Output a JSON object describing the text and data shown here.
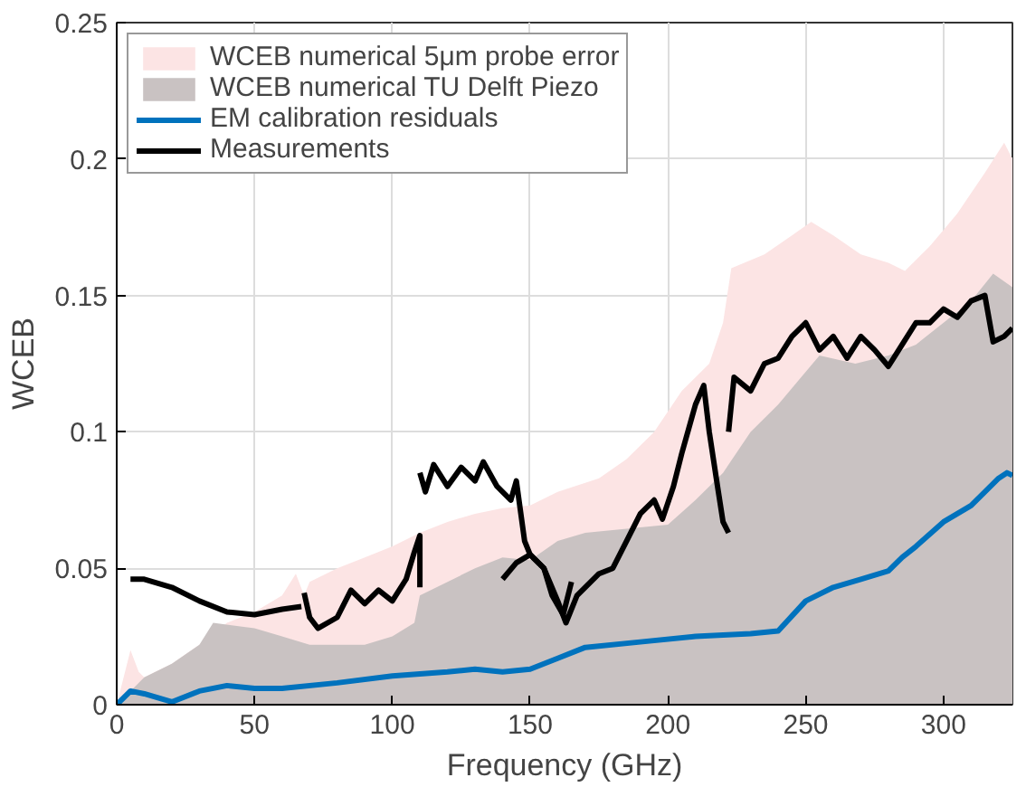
{
  "chart_data": {
    "type": "line",
    "xlabel": "Frequency (GHz)",
    "ylabel": "WCEB",
    "xlim": [
      0,
      325
    ],
    "ylim": [
      0,
      0.25
    ],
    "xticks": [
      0,
      50,
      100,
      150,
      200,
      250,
      300
    ],
    "yticks": [
      0,
      0.05,
      0.1,
      0.15,
      0.2,
      0.25
    ],
    "grid": true,
    "legend": "top left",
    "series": [
      {
        "name": "WCEB numerical 5μm probe error",
        "type": "area",
        "color": "#fce4e4",
        "x": [
          0,
          5,
          8,
          10,
          20,
          30,
          40,
          50,
          60,
          65,
          68,
          70,
          80,
          90,
          100,
          110,
          120,
          130,
          140,
          150,
          160,
          175,
          185,
          195,
          205,
          215,
          220,
          223,
          235,
          245,
          252,
          260,
          270,
          280,
          286,
          295,
          305,
          315,
          322,
          325
        ],
        "values": [
          0,
          0.02,
          0.012,
          0.01,
          0.015,
          0.022,
          0.03,
          0.034,
          0.04,
          0.048,
          0.04,
          0.045,
          0.05,
          0.054,
          0.058,
          0.063,
          0.067,
          0.07,
          0.072,
          0.073,
          0.078,
          0.083,
          0.09,
          0.1,
          0.115,
          0.125,
          0.14,
          0.16,
          0.165,
          0.172,
          0.177,
          0.172,
          0.165,
          0.162,
          0.159,
          0.168,
          0.18,
          0.195,
          0.206,
          0.2
        ]
      },
      {
        "name": "WCEB numerical TU Delft Piezo",
        "type": "area",
        "color": "#c9c2c2",
        "x": [
          0,
          5,
          10,
          20,
          30,
          35,
          50,
          60,
          70,
          90,
          100,
          108,
          110,
          130,
          140,
          150,
          160,
          170,
          190,
          200,
          210,
          220,
          230,
          240,
          250,
          255,
          268,
          280,
          290,
          300,
          310,
          318,
          325
        ],
        "values": [
          0,
          0.005,
          0.01,
          0.015,
          0.022,
          0.03,
          0.028,
          0.025,
          0.022,
          0.022,
          0.025,
          0.03,
          0.04,
          0.05,
          0.054,
          0.053,
          0.06,
          0.063,
          0.065,
          0.066,
          0.075,
          0.085,
          0.1,
          0.11,
          0.122,
          0.128,
          0.125,
          0.128,
          0.132,
          0.14,
          0.148,
          0.158,
          0.153
        ]
      },
      {
        "name": "EM calibration residuals",
        "color": "#0072bd",
        "x": [
          0,
          5,
          10,
          20,
          30,
          40,
          50,
          60,
          80,
          100,
          120,
          130,
          140,
          150,
          160,
          170,
          190,
          210,
          230,
          240,
          250,
          260,
          270,
          280,
          285,
          290,
          300,
          310,
          320,
          323,
          325
        ],
        "values": [
          0,
          0.005,
          0.004,
          0.001,
          0.005,
          0.007,
          0.006,
          0.006,
          0.008,
          0.0105,
          0.012,
          0.013,
          0.012,
          0.013,
          0.017,
          0.021,
          0.023,
          0.025,
          0.026,
          0.027,
          0.038,
          0.043,
          0.046,
          0.049,
          0.054,
          0.058,
          0.067,
          0.073,
          0.083,
          0.085,
          0.084
        ]
      },
      {
        "name": "Measurements",
        "color": "#000000",
        "x": [
          5,
          10,
          20,
          30,
          40,
          50,
          60,
          67
        ],
        "values": [
          0.046,
          0.046,
          0.043,
          0.038,
          0.034,
          0.033,
          0.035,
          0.036
        ]
      },
      {
        "color": "#000000",
        "x": [
          68,
          70,
          73,
          80,
          85,
          90,
          95,
          100,
          105,
          108,
          110,
          110
        ],
        "values": [
          0.041,
          0.032,
          0.028,
          0.032,
          0.042,
          0.037,
          0.042,
          0.038,
          0.046,
          0.056,
          0.062,
          0.043
        ]
      },
      {
        "color": "#000000",
        "x": [
          110,
          112,
          115,
          120,
          125,
          130,
          133,
          138,
          143,
          145,
          148,
          150,
          155,
          158,
          162,
          165
        ],
        "values": [
          0.085,
          0.078,
          0.088,
          0.08,
          0.087,
          0.082,
          0.089,
          0.08,
          0.075,
          0.082,
          0.06,
          0.055,
          0.05,
          0.04,
          0.033,
          0.045
        ]
      },
      {
        "color": "#000000",
        "x": [
          140,
          145,
          150,
          155,
          160,
          163,
          167,
          175,
          180,
          185,
          190,
          195,
          198,
          202,
          205,
          210,
          213,
          215,
          218,
          220,
          222
        ],
        "values": [
          0.046,
          0.052,
          0.055,
          0.05,
          0.038,
          0.03,
          0.04,
          0.048,
          0.05,
          0.06,
          0.07,
          0.075,
          0.068,
          0.08,
          0.092,
          0.11,
          0.117,
          0.1,
          0.08,
          0.067,
          0.063
        ]
      },
      {
        "color": "#000000",
        "x": [
          222,
          224,
          230,
          235,
          240,
          245,
          250,
          255,
          260,
          265,
          270,
          275,
          280,
          285,
          290,
          295,
          300,
          305,
          310,
          315,
          318,
          322,
          325
        ],
        "values": [
          0.1,
          0.12,
          0.115,
          0.125,
          0.127,
          0.135,
          0.14,
          0.13,
          0.135,
          0.127,
          0.135,
          0.13,
          0.124,
          0.132,
          0.14,
          0.14,
          0.145,
          0.142,
          0.148,
          0.15,
          0.133,
          0.135,
          0.138
        ]
      }
    ]
  }
}
